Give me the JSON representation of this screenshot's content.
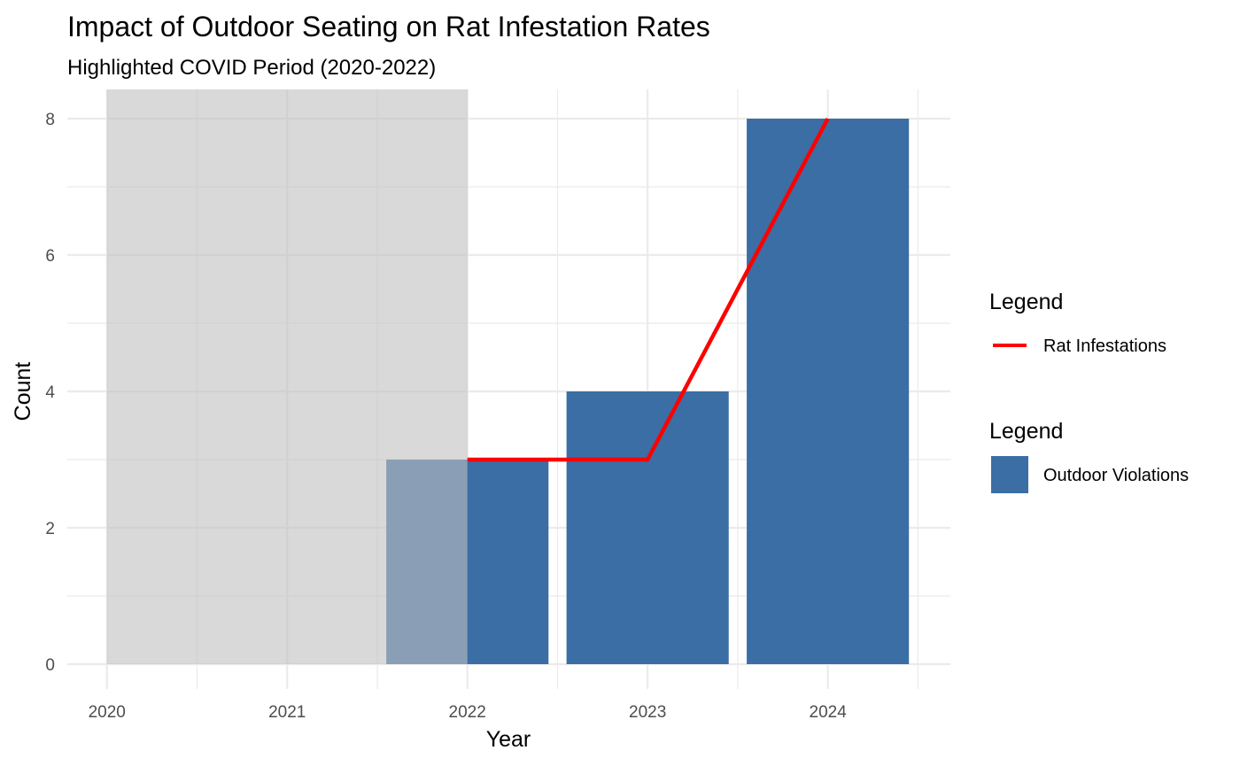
{
  "chart_data": {
    "type": "bar",
    "title": "Impact of Outdoor Seating on Rat Infestation Rates",
    "subtitle": "Highlighted COVID Period (2020-2022)",
    "xlabel": "Year",
    "ylabel": "Count",
    "x_ticks": [
      "2020",
      "2021",
      "2022",
      "2023",
      "2024"
    ],
    "x_range": [
      2019.78,
      2024.68
    ],
    "y_ticks": [
      0,
      2,
      4,
      6,
      8
    ],
    "ylim": [
      0,
      8.4
    ],
    "grid": true,
    "series": [
      {
        "name": "Outdoor Violations",
        "kind": "bar",
        "color": "#3a6ea5",
        "x": [
          2022,
          2023,
          2024
        ],
        "values": [
          3,
          4,
          8
        ],
        "bar_width": 0.9
      },
      {
        "name": "Rat Infestations",
        "kind": "line",
        "color": "#ff0000",
        "x": [
          2022,
          2023,
          2024
        ],
        "values": [
          3,
          3,
          8
        ]
      }
    ],
    "highlight_region": {
      "x_start": 2020,
      "x_end": 2022,
      "color": "#bfbfbf"
    },
    "legends": [
      {
        "title": "Legend",
        "entries": [
          {
            "label": "Rat Infestations",
            "symbol": "line",
            "color": "#ff0000"
          }
        ]
      },
      {
        "title": "Legend",
        "entries": [
          {
            "label": "Outdoor Violations",
            "symbol": "box",
            "color": "#3a6ea5"
          }
        ]
      }
    ],
    "legend_position": "right"
  }
}
